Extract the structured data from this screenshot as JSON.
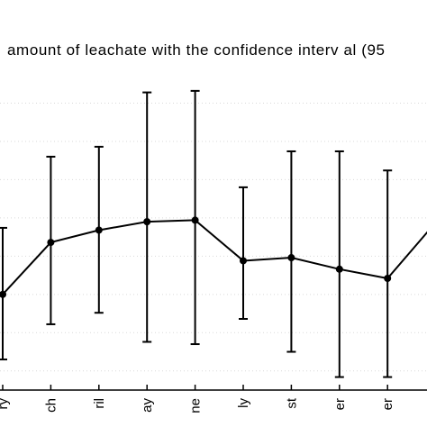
{
  "chart_data": {
    "type": "line",
    "title": "amount of leachate with the confidence interv al (95",
    "categories": [
      "ry",
      "ch",
      "ril",
      "ay",
      "ne",
      "ly",
      "st",
      "er",
      "er",
      ""
    ],
    "series": [
      {
        "values": [
          100,
          168,
          184,
          195,
          197,
          144,
          148,
          133,
          121,
          194
        ],
        "lower": [
          15,
          61,
          76,
          38,
          35,
          68,
          25,
          -8,
          -8,
          194
        ],
        "upper": [
          187,
          280,
          293,
          364,
          366,
          240,
          287,
          287,
          262,
          194
        ]
      }
    ],
    "ylim": [
      -25,
      400
    ],
    "grid": true
  }
}
